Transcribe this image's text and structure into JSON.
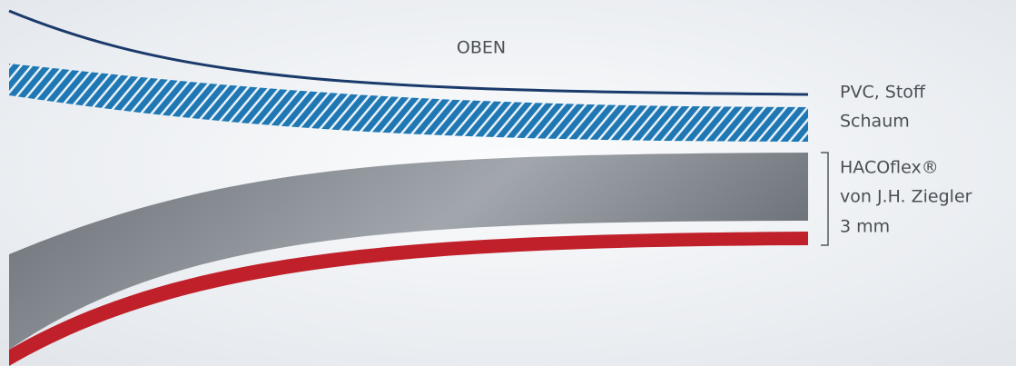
{
  "diagram": {
    "top_label": "OBEN",
    "layers": [
      "PVC, Stoff",
      "Schaum",
      "HACOflex®",
      "von J.H. Ziegler",
      "3 mm"
    ]
  }
}
